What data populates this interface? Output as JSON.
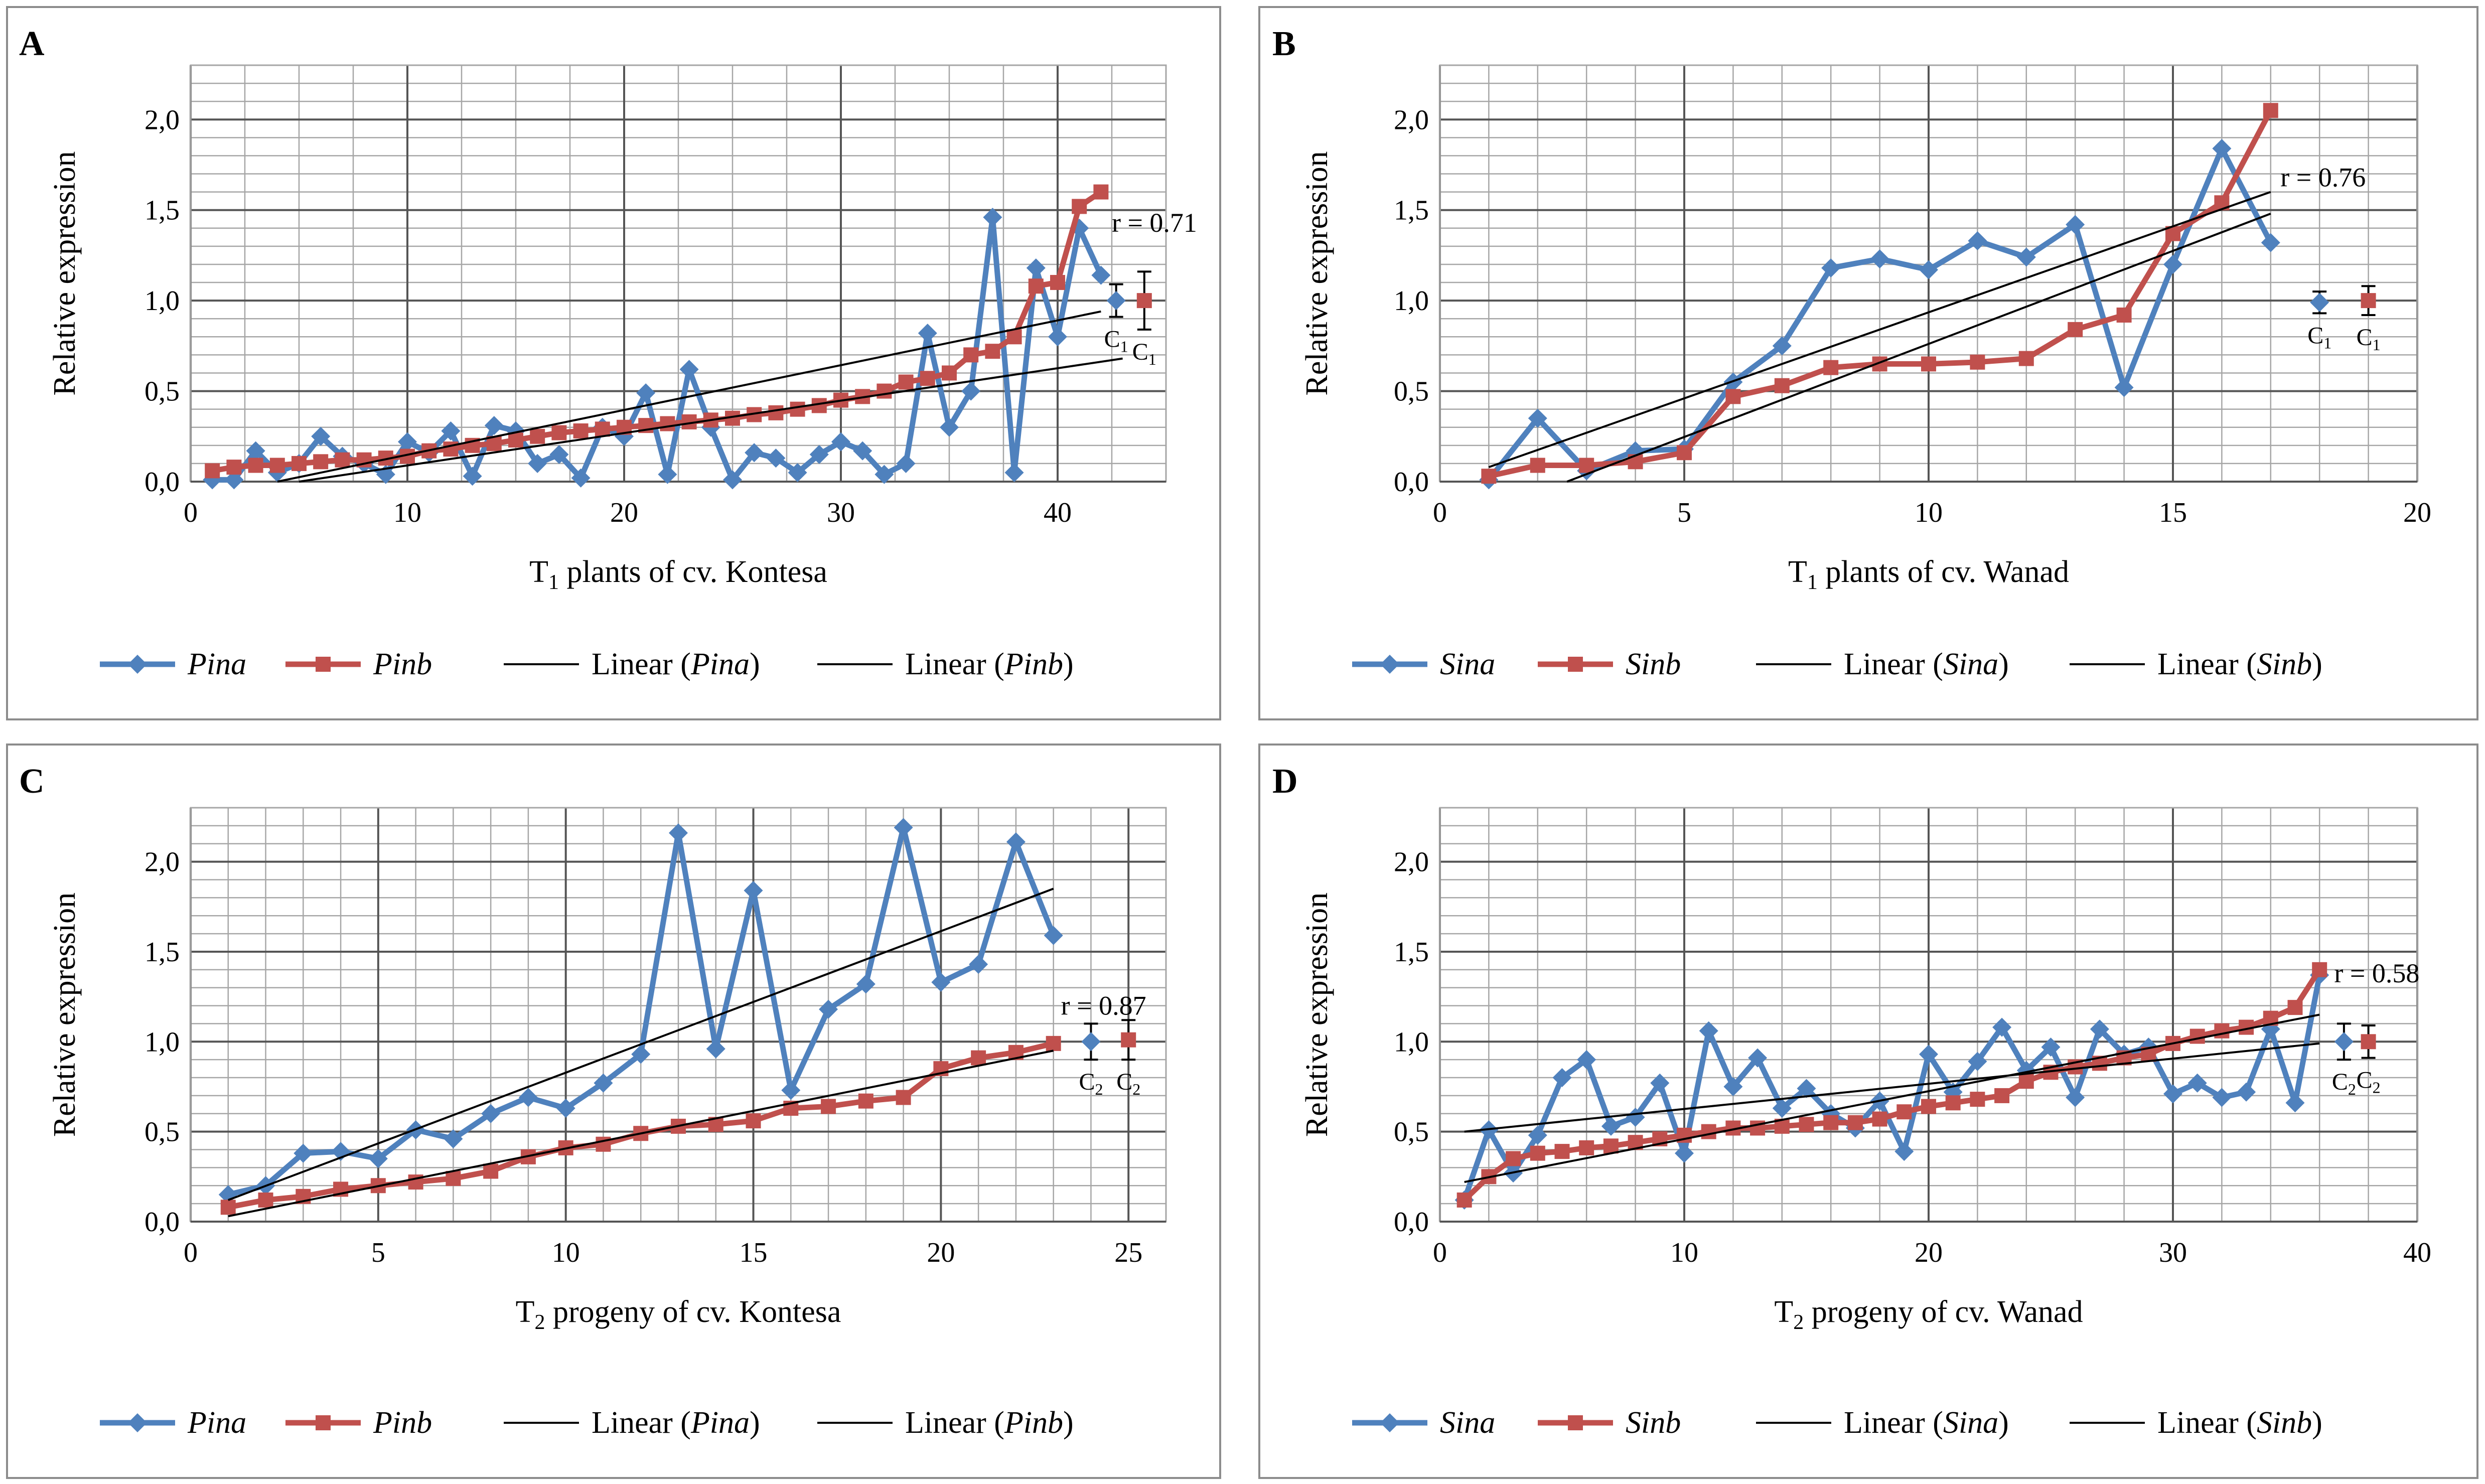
{
  "colors": {
    "blue": "#4F81BD",
    "red": "#C0504D",
    "trend": "#000000",
    "grid": "#A6A6A6",
    "frame": "#8C8C8C"
  },
  "chart_data": [
    {
      "panel_label": "A",
      "type": "line",
      "ylabel": "Relative expression",
      "xlabel": {
        "prefix": "T",
        "sub": "1",
        "rest": " plants of cv. Kontesa"
      },
      "xlim": [
        0,
        45
      ],
      "xticks": [
        0,
        10,
        20,
        30,
        40
      ],
      "xminor": 2.5,
      "ylim": [
        0,
        2.3
      ],
      "yticks": [
        0,
        0.5,
        1,
        1.5,
        2
      ],
      "ytick_labels": [
        "0,0",
        "0,5",
        "1,0",
        "1,5",
        "2,0"
      ],
      "yminor": 0.1,
      "series": [
        {
          "name": "Pina",
          "marker": "diamond",
          "color": "blue",
          "x": [
            1,
            2,
            3,
            4,
            5,
            6,
            7,
            8,
            9,
            10,
            11,
            12,
            13,
            14,
            15,
            16,
            17,
            18,
            19,
            20,
            21,
            22,
            23,
            24,
            25,
            26,
            27,
            28,
            29,
            30,
            31,
            32,
            33,
            34,
            35,
            36,
            37,
            38,
            39,
            40,
            41,
            42
          ],
          "y": [
            0.01,
            0.01,
            0.17,
            0.05,
            0.1,
            0.25,
            0.14,
            0.1,
            0.04,
            0.22,
            0.16,
            0.28,
            0.03,
            0.31,
            0.28,
            0.1,
            0.15,
            0.02,
            0.3,
            0.25,
            0.49,
            0.04,
            0.62,
            0.3,
            0.01,
            0.16,
            0.13,
            0.05,
            0.15,
            0.22,
            0.17,
            0.04,
            0.1,
            0.82,
            0.3,
            0.5,
            1.46,
            0.05,
            1.18,
            0.8,
            1.4,
            1.14
          ]
        },
        {
          "name": "Pinb",
          "marker": "square",
          "color": "red",
          "x": [
            1,
            2,
            3,
            4,
            5,
            6,
            7,
            8,
            9,
            10,
            11,
            12,
            13,
            14,
            15,
            16,
            17,
            18,
            19,
            20,
            21,
            22,
            23,
            24,
            25,
            26,
            27,
            28,
            29,
            30,
            31,
            32,
            33,
            34,
            35,
            36,
            37,
            38,
            39,
            40,
            41,
            42
          ],
          "y": [
            0.06,
            0.08,
            0.09,
            0.09,
            0.1,
            0.11,
            0.12,
            0.12,
            0.13,
            0.14,
            0.17,
            0.18,
            0.2,
            0.21,
            0.23,
            0.25,
            0.27,
            0.28,
            0.29,
            0.3,
            0.31,
            0.32,
            0.33,
            0.34,
            0.35,
            0.37,
            0.38,
            0.4,
            0.42,
            0.45,
            0.47,
            0.5,
            0.55,
            0.57,
            0.6,
            0.7,
            0.72,
            0.8,
            1.08,
            1.1,
            1.52,
            1.6
          ]
        }
      ],
      "trendlines": [
        {
          "name": "Linear (Pina)",
          "x": [
            5,
            43
          ],
          "y": [
            0.0,
            0.68
          ]
        },
        {
          "name": "Linear (Pinb)",
          "x": [
            4,
            42
          ],
          "y": [
            0.0,
            0.94
          ]
        }
      ],
      "controls": [
        {
          "x": 42.7,
          "y": 1.0,
          "err": 0.09,
          "marker": "diamond",
          "color": "blue",
          "label": "C",
          "sub": "1"
        },
        {
          "x": 44.0,
          "y": 1.0,
          "err": 0.16,
          "marker": "square",
          "color": "red",
          "label": "C",
          "sub": "1"
        }
      ],
      "r_text": "r = 0.71",
      "r_pos": [
        42.5,
        1.43
      ],
      "legend": [
        {
          "type": "series",
          "label": "Pina",
          "italic": true,
          "color": "blue",
          "marker": "diamond"
        },
        {
          "type": "series",
          "label": "Pinb",
          "italic": true,
          "color": "red",
          "marker": "square"
        },
        {
          "type": "trend",
          "prefix": "Linear (",
          "name": "Pina",
          "suffix": ")"
        },
        {
          "type": "trend",
          "prefix": "Linear (",
          "name": "Pinb",
          "suffix": ")"
        }
      ]
    },
    {
      "panel_label": "B",
      "type": "line",
      "ylabel": "Relative expression",
      "xlabel": {
        "prefix": "T",
        "sub": "1",
        "rest": " plants of cv. Wanad"
      },
      "xlim": [
        0,
        20
      ],
      "xticks": [
        0,
        5,
        10,
        15,
        20
      ],
      "xminor": 1,
      "ylim": [
        0,
        2.3
      ],
      "yticks": [
        0,
        0.5,
        1,
        1.5,
        2
      ],
      "ytick_labels": [
        "0,0",
        "0,5",
        "1,0",
        "1,5",
        "2,0"
      ],
      "yminor": 0.1,
      "series": [
        {
          "name": "Sina",
          "marker": "diamond",
          "color": "blue",
          "x": [
            1,
            2,
            3,
            4,
            5,
            6,
            7,
            8,
            9,
            10,
            11,
            12,
            13,
            14,
            15,
            16,
            17
          ],
          "y": [
            0.01,
            0.35,
            0.06,
            0.17,
            0.18,
            0.55,
            0.75,
            1.18,
            1.23,
            1.17,
            1.33,
            1.24,
            1.42,
            0.52,
            1.2,
            1.84,
            1.32
          ]
        },
        {
          "name": "Sinb",
          "marker": "square",
          "color": "red",
          "x": [
            1,
            2,
            3,
            4,
            5,
            6,
            7,
            8,
            9,
            10,
            11,
            12,
            13,
            14,
            15,
            16,
            17
          ],
          "y": [
            0.03,
            0.09,
            0.09,
            0.11,
            0.16,
            0.47,
            0.53,
            0.63,
            0.65,
            0.65,
            0.66,
            0.68,
            0.84,
            0.92,
            1.37,
            1.54,
            2.05
          ]
        }
      ],
      "trendlines": [
        {
          "name": "Linear (Sina)",
          "x": [
            1,
            17
          ],
          "y": [
            0.08,
            1.6
          ]
        },
        {
          "name": "Linear (Sinb)",
          "x": [
            2.6,
            17
          ],
          "y": [
            0.0,
            1.48
          ]
        }
      ],
      "controls": [
        {
          "x": 18.0,
          "y": 0.99,
          "err": 0.06,
          "marker": "diamond",
          "color": "blue",
          "label": "C",
          "sub": "1"
        },
        {
          "x": 19.0,
          "y": 1.0,
          "err": 0.08,
          "marker": "square",
          "color": "red",
          "label": "C",
          "sub": "1"
        }
      ],
      "r_text": "r = 0.76",
      "r_pos": [
        17.2,
        1.68
      ],
      "legend": [
        {
          "type": "series",
          "label": "Sina",
          "italic": true,
          "color": "blue",
          "marker": "diamond"
        },
        {
          "type": "series",
          "label": "Sinb",
          "italic": true,
          "color": "red",
          "marker": "square"
        },
        {
          "type": "trend",
          "prefix": "Linear (",
          "name": "Sina",
          "suffix": ")"
        },
        {
          "type": "trend",
          "prefix": "Linear (",
          "name": "Sinb",
          "suffix": ")"
        }
      ]
    },
    {
      "panel_label": "C",
      "type": "line",
      "ylabel": "Relative expression",
      "xlabel": {
        "prefix": "T",
        "sub": "2",
        "rest": " progeny of cv. Kontesa"
      },
      "xlim": [
        0,
        26
      ],
      "xticks": [
        0,
        5,
        10,
        15,
        20,
        25
      ],
      "xminor": 1,
      "ylim": [
        0,
        2.3
      ],
      "yticks": [
        0,
        0.5,
        1,
        1.5,
        2
      ],
      "ytick_labels": [
        "0,0",
        "0,5",
        "1,0",
        "1,5",
        "2,0"
      ],
      "yminor": 0.1,
      "series": [
        {
          "name": "Pina",
          "marker": "diamond",
          "color": "blue",
          "x": [
            1,
            2,
            3,
            4,
            5,
            6,
            7,
            8,
            9,
            10,
            11,
            12,
            13,
            14,
            15,
            16,
            17,
            18,
            19,
            20,
            21,
            22,
            23
          ],
          "y": [
            0.15,
            0.2,
            0.38,
            0.39,
            0.35,
            0.51,
            0.46,
            0.6,
            0.69,
            0.63,
            0.77,
            0.93,
            2.16,
            0.96,
            1.84,
            0.73,
            1.18,
            1.32,
            2.19,
            1.33,
            1.43,
            2.11,
            1.59
          ]
        },
        {
          "name": "Pinb",
          "marker": "square",
          "color": "red",
          "x": [
            1,
            2,
            3,
            4,
            5,
            6,
            7,
            8,
            9,
            10,
            11,
            12,
            13,
            14,
            15,
            16,
            17,
            18,
            19,
            20,
            21,
            22,
            23
          ],
          "y": [
            0.08,
            0.12,
            0.14,
            0.18,
            0.2,
            0.22,
            0.24,
            0.28,
            0.36,
            0.41,
            0.43,
            0.49,
            0.53,
            0.54,
            0.56,
            0.63,
            0.64,
            0.67,
            0.69,
            0.85,
            0.91,
            0.94,
            0.99
          ]
        }
      ],
      "trendlines": [
        {
          "name": "Linear (Pina)",
          "x": [
            1,
            23
          ],
          "y": [
            0.12,
            1.85
          ]
        },
        {
          "name": "Linear (Pinb)",
          "x": [
            1,
            23
          ],
          "y": [
            0.03,
            0.95
          ]
        }
      ],
      "controls": [
        {
          "x": 24.0,
          "y": 1.0,
          "err": 0.1,
          "marker": "diamond",
          "color": "blue",
          "label": "C",
          "sub": "2"
        },
        {
          "x": 25.0,
          "y": 1.01,
          "err": 0.11,
          "marker": "square",
          "color": "red",
          "label": "C",
          "sub": "2"
        }
      ],
      "r_text": "r = 0.87",
      "r_pos": [
        23.2,
        1.2
      ],
      "legend": [
        {
          "type": "series",
          "label": "Pina",
          "italic": true,
          "color": "blue",
          "marker": "diamond"
        },
        {
          "type": "series",
          "label": "Pinb",
          "italic": true,
          "color": "red",
          "marker": "square"
        },
        {
          "type": "trend",
          "prefix": "Linear (",
          "name": "Pina",
          "suffix": ")"
        },
        {
          "type": "trend",
          "prefix": "Linear (",
          "name": "Pinb",
          "suffix": ")"
        }
      ]
    },
    {
      "panel_label": "D",
      "type": "line",
      "ylabel": "Relative expression",
      "xlabel": {
        "prefix": "T",
        "sub": "2",
        "rest": " progeny of cv. Wanad"
      },
      "xlim": [
        0,
        40
      ],
      "xticks": [
        0,
        10,
        20,
        30,
        40
      ],
      "xminor": 2,
      "ylim": [
        0,
        2.3
      ],
      "yticks": [
        0,
        0.5,
        1,
        1.5,
        2
      ],
      "ytick_labels": [
        "0,0",
        "0,5",
        "1,0",
        "1,5",
        "2,0"
      ],
      "yminor": 0.1,
      "series": [
        {
          "name": "Sina",
          "marker": "diamond",
          "color": "blue",
          "x": [
            1,
            2,
            3,
            4,
            5,
            6,
            7,
            8,
            9,
            10,
            11,
            12,
            13,
            14,
            15,
            16,
            17,
            18,
            19,
            20,
            21,
            22,
            23,
            24,
            25,
            26,
            27,
            28,
            29,
            30,
            31,
            32,
            33,
            34,
            35,
            36
          ],
          "y": [
            0.12,
            0.51,
            0.27,
            0.48,
            0.8,
            0.9,
            0.53,
            0.58,
            0.77,
            0.38,
            1.06,
            0.75,
            0.91,
            0.63,
            0.74,
            0.6,
            0.52,
            0.67,
            0.39,
            0.93,
            0.72,
            0.89,
            1.08,
            0.84,
            0.97,
            0.69,
            1.07,
            0.93,
            0.97,
            0.71,
            0.77,
            0.69,
            0.72,
            1.07,
            0.66,
            1.37
          ]
        },
        {
          "name": "Sinb",
          "marker": "square",
          "color": "red",
          "x": [
            1,
            2,
            3,
            4,
            5,
            6,
            7,
            8,
            9,
            10,
            11,
            12,
            13,
            14,
            15,
            16,
            17,
            18,
            19,
            20,
            21,
            22,
            23,
            24,
            25,
            26,
            27,
            28,
            29,
            30,
            31,
            32,
            33,
            34,
            35,
            36
          ],
          "y": [
            0.12,
            0.25,
            0.35,
            0.38,
            0.39,
            0.41,
            0.42,
            0.44,
            0.46,
            0.48,
            0.5,
            0.52,
            0.52,
            0.53,
            0.54,
            0.55,
            0.55,
            0.57,
            0.61,
            0.64,
            0.66,
            0.68,
            0.7,
            0.78,
            0.83,
            0.86,
            0.88,
            0.91,
            0.93,
            0.99,
            1.03,
            1.06,
            1.08,
            1.13,
            1.19,
            1.4
          ]
        }
      ],
      "trendlines": [
        {
          "name": "Linear (Sina)",
          "x": [
            1,
            36
          ],
          "y": [
            0.5,
            0.99
          ]
        },
        {
          "name": "Linear (Sinb)",
          "x": [
            1,
            36
          ],
          "y": [
            0.22,
            1.15
          ]
        }
      ],
      "controls": [
        {
          "x": 37.0,
          "y": 1.0,
          "err": 0.1,
          "marker": "diamond",
          "color": "blue",
          "label": "C",
          "sub": "2"
        },
        {
          "x": 38.0,
          "y": 1.0,
          "err": 0.09,
          "marker": "square",
          "color": "red",
          "label": "C",
          "sub": "2"
        }
      ],
      "r_text": "r = 0.58",
      "r_pos": [
        36.6,
        1.38
      ],
      "legend": [
        {
          "type": "series",
          "label": "Sina",
          "italic": true,
          "color": "blue",
          "marker": "diamond"
        },
        {
          "type": "series",
          "label": "Sinb",
          "italic": true,
          "color": "red",
          "marker": "square"
        },
        {
          "type": "trend",
          "prefix": "Linear (",
          "name": "Sina",
          "suffix": ")"
        },
        {
          "type": "trend",
          "prefix": "Linear (",
          "name": "Sinb",
          "suffix": ")"
        }
      ]
    }
  ]
}
